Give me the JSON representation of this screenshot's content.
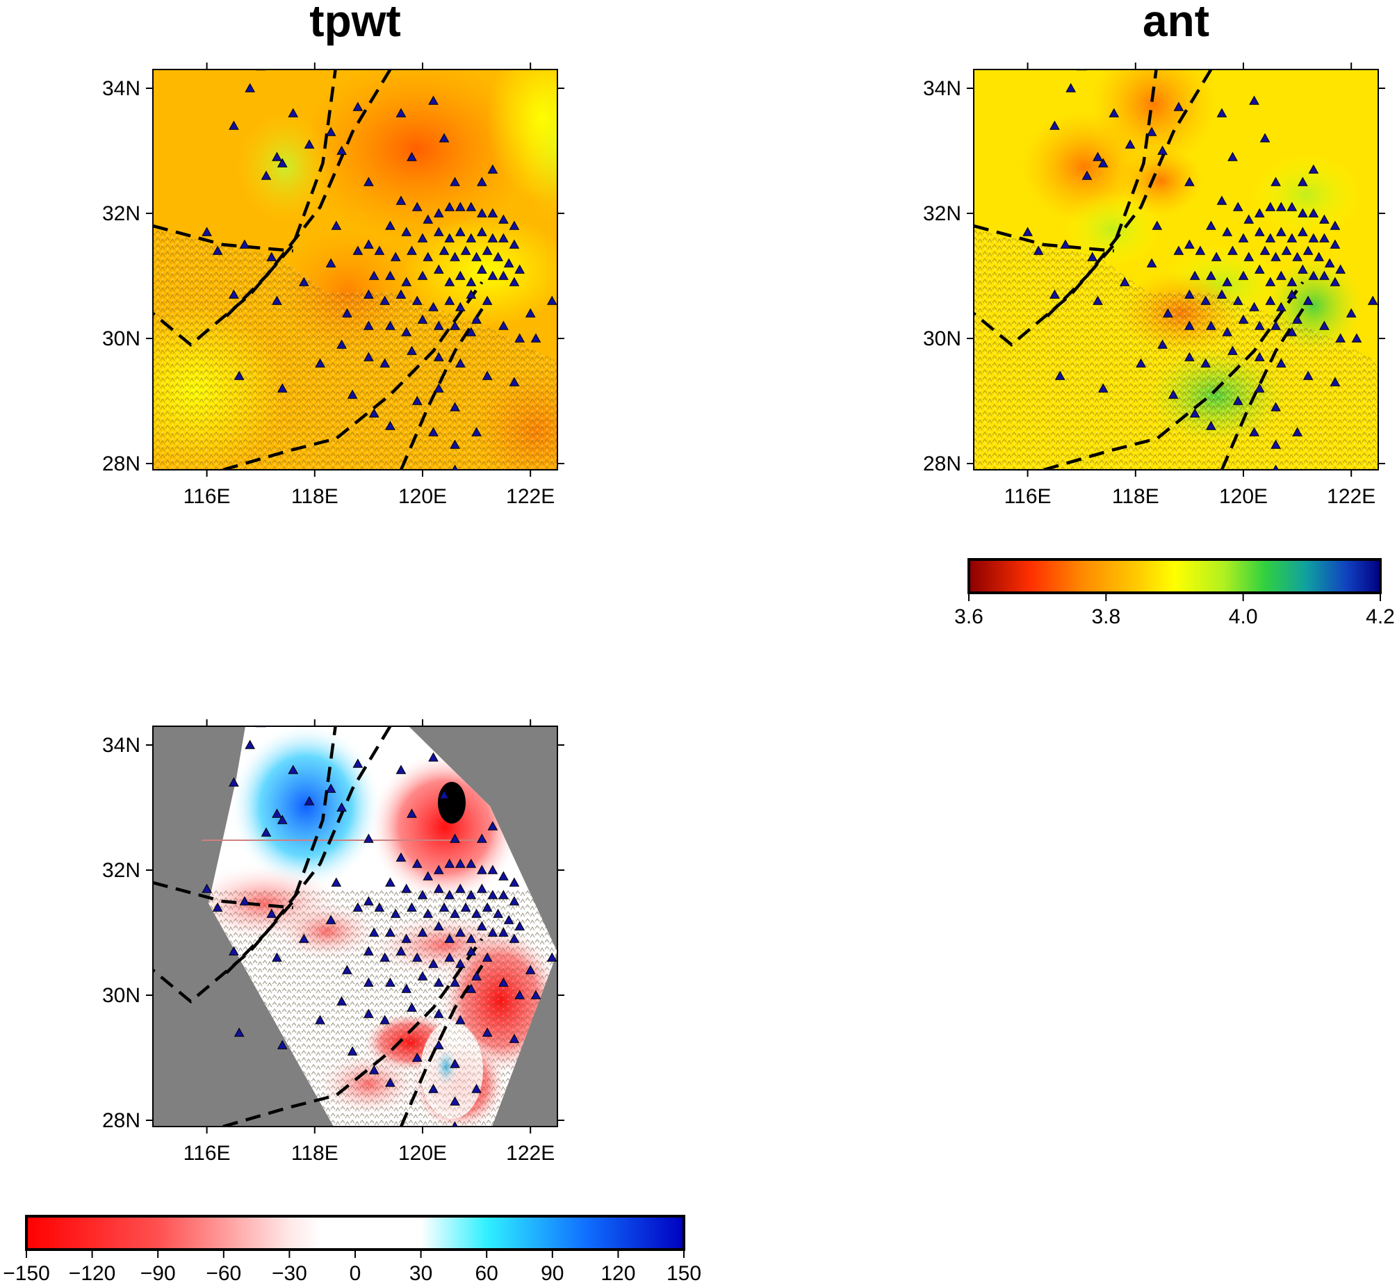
{
  "panels": {
    "tpwt": {
      "title": "tpwt"
    },
    "ant": {
      "title": "ant"
    },
    "diff": {
      "title": ""
    }
  },
  "axes": {
    "lon_labels": [
      "116E",
      "118E",
      "120E",
      "122E"
    ],
    "lon_values": [
      116,
      118,
      120,
      122
    ],
    "lat_labels": [
      "34N",
      "32N",
      "30N",
      "28N"
    ],
    "lat_values": [
      34,
      32,
      30,
      28
    ],
    "lon_range": [
      115,
      122.5
    ],
    "lat_range": [
      27.9,
      34.3
    ]
  },
  "velocity_colorbar": {
    "labels": [
      "3.6",
      "3.8",
      "4.0",
      "4.2"
    ],
    "values": [
      3.6,
      3.8,
      4.0,
      4.2
    ],
    "colors": [
      "#8b0000",
      "#ff4000",
      "#ffb000",
      "#ffff00",
      "#a0f000",
      "#20d040",
      "#10a0a0",
      "#0030c0",
      "#000080"
    ]
  },
  "difference_colorbar": {
    "labels": [
      "−150",
      "−120",
      "−90",
      "−60",
      "−30",
      "0",
      "30",
      "60",
      "90",
      "120",
      "150"
    ],
    "values": [
      -150,
      -120,
      -90,
      -60,
      -30,
      0,
      30,
      60,
      90,
      120,
      150
    ],
    "colors": [
      "#ff0000",
      "#ff5050",
      "#ffa0a0",
      "#ffffff",
      "#ffffff",
      "#30f0ff",
      "#1070ff",
      "#0000c0"
    ]
  },
  "colors": {
    "station": "#1010a0",
    "fault": "#000000",
    "mask": "#808080",
    "profile_line": "#d08080"
  },
  "faults": [
    [
      [
        118.4,
        34.4
      ],
      [
        118.15,
        32.8
      ],
      [
        117.6,
        31.5
      ],
      [
        116.8,
        30.7
      ],
      [
        115.7,
        29.9
      ],
      [
        115.0,
        30.4
      ]
    ],
    [
      [
        119.4,
        34.3
      ],
      [
        118.7,
        33.3
      ],
      [
        118.1,
        32.1
      ],
      [
        117.1,
        31.0
      ],
      [
        116.3,
        30.3
      ]
    ],
    [
      [
        115.0,
        31.8
      ],
      [
        116.3,
        31.5
      ],
      [
        117.6,
        31.4
      ]
    ],
    [
      [
        116.3,
        27.9
      ],
      [
        117.5,
        28.2
      ],
      [
        118.4,
        28.4
      ],
      [
        119.4,
        29.1
      ],
      [
        120.2,
        29.8
      ],
      [
        121.1,
        30.9
      ]
    ],
    [
      [
        119.6,
        27.9
      ],
      [
        120.1,
        28.9
      ],
      [
        120.6,
        29.8
      ],
      [
        121.2,
        30.6
      ]
    ]
  ],
  "stations": [
    [
      117.0,
      34.35
    ],
    [
      116.8,
      34.0
    ],
    [
      116.5,
      33.4
    ],
    [
      117.6,
      33.6
    ],
    [
      117.9,
      33.1
    ],
    [
      117.3,
      32.9
    ],
    [
      117.4,
      32.8
    ],
    [
      117.1,
      32.6
    ],
    [
      118.5,
      33.0
    ],
    [
      118.3,
      33.3
    ],
    [
      118.8,
      33.7
    ],
    [
      119.6,
      33.6
    ],
    [
      120.2,
      33.8
    ],
    [
      120.4,
      33.2
    ],
    [
      119.8,
      32.9
    ],
    [
      119.0,
      32.5
    ],
    [
      120.6,
      32.5
    ],
    [
      121.1,
      32.5
    ],
    [
      121.3,
      32.7
    ],
    [
      119.6,
      32.2
    ],
    [
      119.9,
      32.1
    ],
    [
      120.1,
      31.9
    ],
    [
      120.3,
      32.0
    ],
    [
      120.5,
      32.1
    ],
    [
      120.7,
      32.1
    ],
    [
      120.9,
      32.1
    ],
    [
      121.1,
      32.0
    ],
    [
      121.3,
      32.0
    ],
    [
      121.5,
      31.9
    ],
    [
      121.7,
      31.8
    ],
    [
      119.4,
      31.8
    ],
    [
      119.7,
      31.7
    ],
    [
      120.0,
      31.6
    ],
    [
      120.3,
      31.7
    ],
    [
      120.5,
      31.6
    ],
    [
      120.7,
      31.7
    ],
    [
      120.9,
      31.6
    ],
    [
      121.1,
      31.7
    ],
    [
      121.3,
      31.6
    ],
    [
      121.5,
      31.6
    ],
    [
      121.7,
      31.5
    ],
    [
      119.2,
      31.4
    ],
    [
      119.5,
      31.3
    ],
    [
      119.8,
      31.4
    ],
    [
      120.1,
      31.3
    ],
    [
      120.4,
      31.4
    ],
    [
      120.6,
      31.3
    ],
    [
      120.8,
      31.4
    ],
    [
      121.0,
      31.3
    ],
    [
      121.2,
      31.4
    ],
    [
      121.4,
      31.3
    ],
    [
      121.6,
      31.2
    ],
    [
      121.8,
      31.1
    ],
    [
      119.1,
      31.0
    ],
    [
      119.4,
      31.0
    ],
    [
      119.7,
      30.9
    ],
    [
      120.0,
      31.0
    ],
    [
      120.3,
      31.1
    ],
    [
      120.5,
      30.9
    ],
    [
      120.7,
      31.0
    ],
    [
      120.9,
      30.9
    ],
    [
      121.1,
      31.1
    ],
    [
      121.3,
      31.0
    ],
    [
      121.5,
      31.0
    ],
    [
      121.7,
      30.9
    ],
    [
      119.0,
      30.7
    ],
    [
      119.3,
      30.6
    ],
    [
      119.6,
      30.7
    ],
    [
      119.9,
      30.6
    ],
    [
      120.2,
      30.5
    ],
    [
      120.5,
      30.6
    ],
    [
      120.7,
      30.5
    ],
    [
      120.9,
      30.7
    ],
    [
      121.2,
      30.6
    ],
    [
      122.4,
      30.6
    ],
    [
      122.0,
      30.4
    ],
    [
      121.5,
      30.2
    ],
    [
      118.6,
      30.4
    ],
    [
      119.0,
      30.2
    ],
    [
      119.4,
      30.2
    ],
    [
      119.7,
      30.1
    ],
    [
      120.0,
      30.3
    ],
    [
      120.3,
      30.2
    ],
    [
      120.6,
      30.2
    ],
    [
      120.9,
      30.1
    ],
    [
      121.0,
      30.3
    ],
    [
      121.8,
      30.0
    ],
    [
      122.1,
      30.0
    ],
    [
      118.4,
      31.8
    ],
    [
      118.8,
      31.4
    ],
    [
      119.0,
      31.5
    ],
    [
      118.3,
      31.2
    ],
    [
      117.8,
      30.9
    ],
    [
      117.2,
      31.3
    ],
    [
      116.7,
      31.5
    ],
    [
      116.2,
      31.4
    ],
    [
      116.0,
      31.7
    ],
    [
      116.5,
      30.7
    ],
    [
      117.3,
      30.6
    ],
    [
      118.5,
      29.9
    ],
    [
      119.0,
      29.7
    ],
    [
      119.3,
      29.6
    ],
    [
      119.8,
      29.8
    ],
    [
      120.3,
      29.7
    ],
    [
      120.7,
      29.6
    ],
    [
      121.2,
      29.4
    ],
    [
      121.7,
      29.3
    ],
    [
      119.9,
      29.0
    ],
    [
      120.3,
      29.2
    ],
    [
      120.6,
      28.9
    ],
    [
      120.2,
      28.5
    ],
    [
      120.6,
      28.3
    ],
    [
      121.0,
      28.5
    ],
    [
      118.7,
      29.1
    ],
    [
      119.1,
      28.8
    ],
    [
      119.4,
      28.6
    ],
    [
      117.4,
      29.2
    ],
    [
      116.6,
      29.4
    ],
    [
      118.1,
      29.6
    ],
    [
      120.6,
      27.9
    ]
  ]
}
